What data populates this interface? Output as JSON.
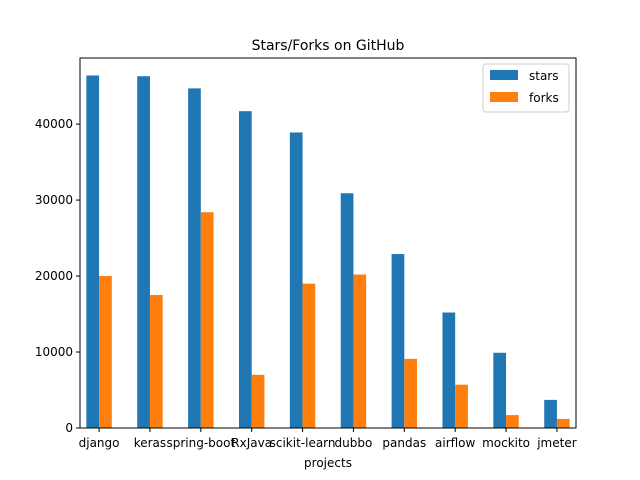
{
  "chart_data": {
    "type": "bar",
    "title": "Stars/Forks on GitHub",
    "xlabel": "projects",
    "ylabel": "",
    "categories": [
      "django",
      "keras",
      "spring-boot",
      "RxJava",
      "scikit-learn",
      "dubbo",
      "pandas",
      "airflow",
      "mockito",
      "jmeter"
    ],
    "series": [
      {
        "name": "stars",
        "color": "#1f77b4",
        "values": [
          46400,
          46300,
          44700,
          41700,
          38900,
          30900,
          22900,
          15200,
          9900,
          3700
        ]
      },
      {
        "name": "forks",
        "color": "#ff7f0e",
        "values": [
          20000,
          17500,
          28400,
          7000,
          19000,
          20200,
          9100,
          5700,
          1700,
          1200
        ]
      }
    ],
    "yticks": [
      0,
      10000,
      20000,
      30000,
      40000
    ],
    "ylim": [
      0,
      48700
    ],
    "legend_position": "top-right",
    "grid": false
  }
}
